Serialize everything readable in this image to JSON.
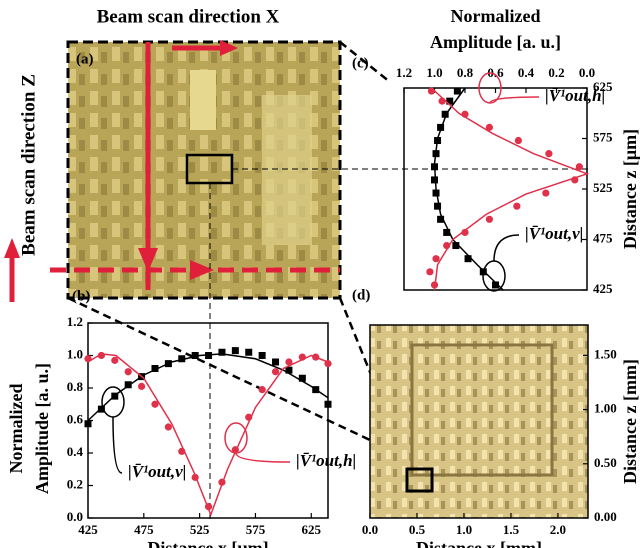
{
  "panel_a": {
    "label": "(a)",
    "x_direction": "Beam scan direction X",
    "z_direction": "Beam scan direction Z"
  },
  "chart_data": [
    {
      "type": "scatter",
      "panel": "(b)",
      "orientation": "vertical",
      "xlabel": "Distance x [μm]",
      "ylabel": [
        "Normalized",
        "Amplitude [a. u.]"
      ],
      "xlim": [
        425,
        640
      ],
      "xticks": [
        425,
        475,
        525,
        575,
        625
      ],
      "ylim": [
        0,
        1.2
      ],
      "yticks": [
        {
          "value": 0,
          "label": "0.0"
        },
        0.2,
        0.4,
        0.6,
        0.8,
        {
          "value": 1,
          "label": "1.0"
        },
        1.2
      ],
      "series": [
        {
          "name": "|V̄¹out,v|",
          "color": "#000000",
          "marker": "square",
          "x": [
            425,
            437,
            449,
            461,
            473,
            485,
            497,
            509,
            521,
            533,
            545,
            557,
            569,
            581,
            593,
            605,
            617,
            629,
            640
          ],
          "values": [
            0.58,
            0.67,
            0.75,
            0.82,
            0.87,
            0.92,
            0.95,
            0.98,
            1.0,
            1.0,
            1.02,
            1.03,
            1.02,
            1.0,
            0.96,
            0.91,
            0.86,
            0.79,
            0.7
          ],
          "fit": {
            "x": [
              425,
              450,
              475,
              500,
              525,
              545,
              575,
              600,
              625,
              640
            ],
            "values": [
              0.6,
              0.76,
              0.88,
              0.96,
              1.0,
              1.01,
              0.98,
              0.91,
              0.81,
              0.74
            ]
          }
        },
        {
          "name": "|V̄¹out,h|",
          "color": "#e0304a",
          "marker": "circle",
          "x": [
            425,
            437,
            449,
            461,
            473,
            485,
            497,
            509,
            521,
            533,
            545,
            557,
            569,
            581,
            593,
            605,
            617,
            629,
            640
          ],
          "values": [
            0.98,
            1.0,
            0.97,
            0.9,
            0.81,
            0.7,
            0.56,
            0.41,
            0.25,
            0.07,
            0.22,
            0.42,
            0.62,
            0.79,
            0.9,
            0.96,
            0.99,
            0.99,
            0.95
          ],
          "fit": {
            "x": [
              425,
              437,
              450,
              475,
              500,
              520,
              535,
              550,
              575,
              600,
              625,
              640
            ],
            "values": [
              0.96,
              1.01,
              1.0,
              0.86,
              0.58,
              0.28,
              0.02,
              0.3,
              0.68,
              0.92,
              1.0,
              0.96
            ]
          }
        }
      ]
    },
    {
      "type": "scatter",
      "panel": "(c)",
      "orientation": "horizontal",
      "xlabel": [
        "Normalized",
        "Amplitude [a. u.]"
      ],
      "ylabel": "Distance z [μm]",
      "xlim": [
        1.2,
        0
      ],
      "xticks": [
        1.2,
        {
          "value": 1,
          "label": "1.0"
        },
        0.8,
        0.6,
        0.4,
        0.2,
        {
          "value": 0,
          "label": "0.0"
        }
      ],
      "ylim": [
        425,
        625
      ],
      "yticks": [
        425,
        475,
        525,
        575,
        625
      ],
      "series": [
        {
          "name": "|V̄¹out,v|",
          "color": "#000000",
          "marker": "square",
          "z": [
            430,
            443,
            456,
            469,
            482,
            495,
            508,
            521,
            534,
            547,
            560,
            573,
            586,
            599,
            612,
            622
          ],
          "values": [
            0.6,
            0.68,
            0.78,
            0.86,
            0.92,
            0.96,
            0.98,
            0.99,
            1.0,
            1.0,
            0.99,
            0.98,
            0.96,
            0.93,
            0.9,
            0.85
          ],
          "fit": {
            "z": [
              425,
              450,
              475,
              500,
              525,
              550,
              575,
              600,
              625
            ],
            "values": [
              0.55,
              0.72,
              0.88,
              0.96,
              0.99,
              1.0,
              0.98,
              0.92,
              0.8
            ]
          }
        },
        {
          "name": "|V̄¹out,h|",
          "color": "#e0304a",
          "marker": "circle",
          "z": [
            430,
            443,
            456,
            469,
            482,
            495,
            508,
            521,
            534,
            547,
            560,
            573,
            586,
            599,
            612,
            622
          ],
          "values": [
            1.0,
            1.03,
            0.99,
            0.92,
            0.8,
            0.64,
            0.46,
            0.27,
            0.08,
            0.05,
            0.25,
            0.45,
            0.64,
            0.8,
            0.95,
            1.02
          ],
          "fit": {
            "z": [
              425,
              450,
              475,
              500,
              520,
              540,
              560,
              580,
              600,
              625
            ],
            "values": [
              1.0,
              0.98,
              0.88,
              0.66,
              0.4,
              0.0,
              0.35,
              0.62,
              0.84,
              1.02
            ]
          }
        }
      ]
    },
    {
      "type": "image",
      "panel": "(d)",
      "xlabel": "Distance x [mm]",
      "ylabel": "Distance z [mm]",
      "xlim": [
        0,
        2.32
      ],
      "xticks": [
        {
          "value": 0,
          "label": "0.0"
        },
        0.5,
        {
          "value": 1,
          "label": "1.0"
        },
        1.5,
        {
          "value": 2,
          "label": "2.0"
        }
      ],
      "ylim": [
        0,
        1.78
      ],
      "yticks": [
        {
          "value": 0,
          "label": "0.00"
        },
        {
          "value": 0.5,
          "label": "0.50"
        },
        {
          "value": 1,
          "label": "1.00"
        },
        {
          "value": 1.5,
          "label": "1.50"
        }
      ]
    }
  ]
}
